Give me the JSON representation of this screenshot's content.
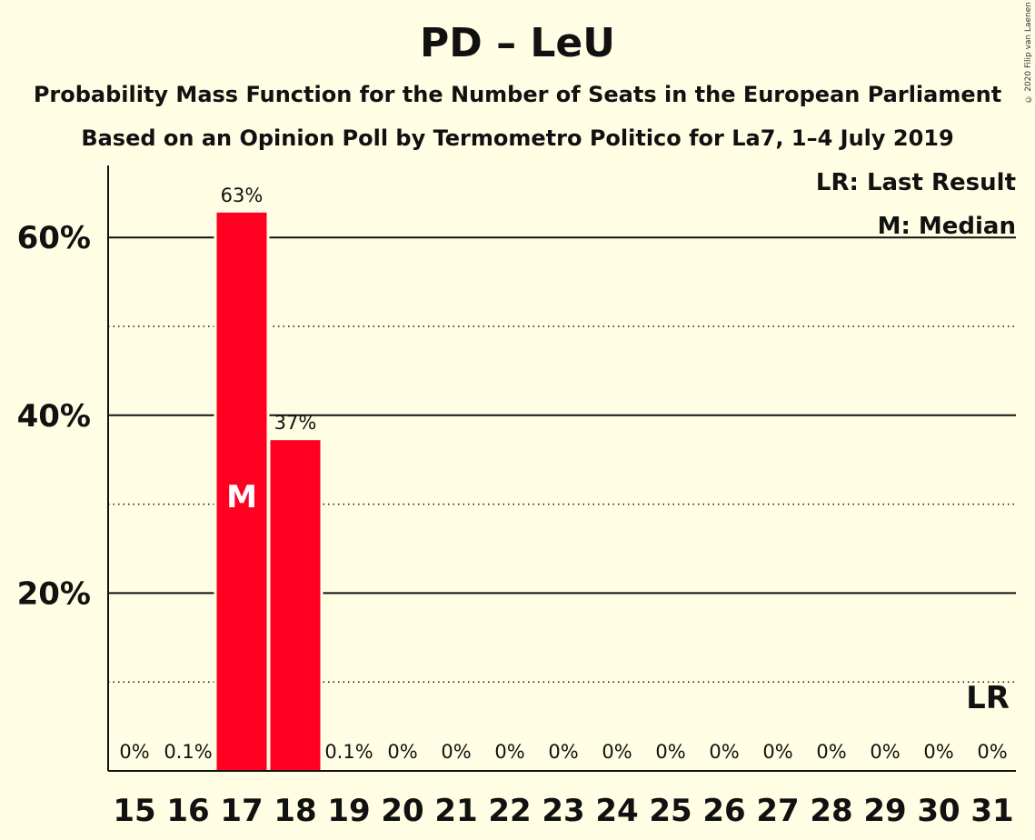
{
  "title": "PD – LeU",
  "subtitle_1": "Probability Mass Function for the Number of Seats in the European Parliament",
  "subtitle_2": "Based on an Opinion Poll by Termometro Politico for La7, 1–4 July 2019",
  "copyright": "© 2020 Filip van Laenen",
  "legend": {
    "last_result": "LR: Last Result",
    "median": "M: Median"
  },
  "colors": {
    "bar": "#ff0020",
    "background": "#fffde3",
    "text": "#111111"
  },
  "chart_data": {
    "type": "bar",
    "categories": [
      "15",
      "16",
      "17",
      "18",
      "19",
      "20",
      "21",
      "22",
      "23",
      "24",
      "25",
      "26",
      "27",
      "28",
      "29",
      "30",
      "31"
    ],
    "values": [
      0,
      0.1,
      62.8,
      37.2,
      0.1,
      0,
      0,
      0,
      0,
      0,
      0,
      0,
      0,
      0,
      0,
      0,
      0
    ],
    "data_labels": [
      "0%",
      "0.1%",
      "63%",
      "37%",
      "0.1%",
      "0%",
      "0%",
      "0%",
      "0%",
      "0%",
      "0%",
      "0%",
      "0%",
      "0%",
      "0%",
      "0%",
      "0%"
    ],
    "ylim": [
      0,
      68
    ],
    "yticks": [
      20,
      40,
      60
    ],
    "ytick_labels": [
      "20%",
      "40%",
      "60%"
    ],
    "minor_gridlines": [
      10,
      30,
      50
    ],
    "median_seat": "17",
    "median_marker": "M",
    "last_result_seat": "31",
    "last_result_marker": "LR",
    "legend_position": "top-right"
  }
}
